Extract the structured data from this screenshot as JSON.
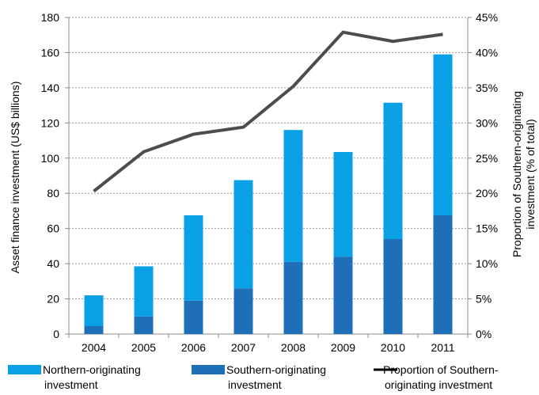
{
  "chart_data": {
    "type": "bar",
    "stacked": true,
    "categories": [
      "2004",
      "2005",
      "2006",
      "2007",
      "2008",
      "2009",
      "2010",
      "2011"
    ],
    "series": [
      {
        "name": "Southern-originating investment",
        "values": [
          4.5,
          10,
          19,
          26,
          41,
          44,
          54,
          67.5
        ],
        "color": "#1f6fb8",
        "axis": "left"
      },
      {
        "name": "Northern-originating investment",
        "values": [
          17.5,
          28.5,
          48.5,
          61.5,
          75,
          59.5,
          77.5,
          91.5
        ],
        "color": "#0aa0e6",
        "axis": "left"
      },
      {
        "name": "Proportion of Southern-originating investment",
        "type": "line",
        "values": [
          20.3,
          25.9,
          28.4,
          29.4,
          35.2,
          42.9,
          41.6,
          42.6
        ],
        "color": "#4d4d4d",
        "axis": "right"
      }
    ],
    "ylabel": "Asset finance investment (US$ billions)",
    "ylabel_right": [
      "Proportion of Southern-originating",
      "investment (% of total)"
    ],
    "ylim": [
      0,
      180
    ],
    "ylim_right": [
      0,
      45
    ],
    "yticks": [
      "0",
      "20",
      "40",
      "60",
      "80",
      "100",
      "120",
      "140",
      "160",
      "180"
    ],
    "yticks_right": [
      "0%",
      "5%",
      "10%",
      "15%",
      "20%",
      "25%",
      "30%",
      "35%",
      "40%",
      "45%"
    ],
    "grid": true,
    "legend_position": "bottom",
    "legend": [
      {
        "lines": [
          "Northern-originating",
          "investment"
        ],
        "kind": "box",
        "color": "#0aa0e6"
      },
      {
        "lines": [
          "Southern-originating",
          "investment"
        ],
        "kind": "box",
        "color": "#1f6fb8"
      },
      {
        "lines": [
          "Proportion of Southern-",
          "originating investment"
        ],
        "kind": "line",
        "color": "#000000"
      }
    ]
  }
}
